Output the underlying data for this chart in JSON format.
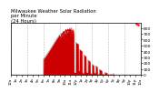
{
  "title": "Milwaukee Weather Solar Radiation\nper Minute\n(24 Hours)",
  "title_fontsize": 3.8,
  "bg_color": "#ffffff",
  "plot_bg_color": "#ffffff",
  "line_color": "#cc0000",
  "fill_color": "#cc0000",
  "ylim": [
    0,
    880
  ],
  "yticks": [
    0,
    100,
    200,
    300,
    400,
    500,
    600,
    700,
    800
  ],
  "ytick_fontsize": 3.2,
  "xtick_fontsize": 2.8,
  "grid_color": "#bbbbbb",
  "grid_style": "dashed",
  "num_points": 1440
}
